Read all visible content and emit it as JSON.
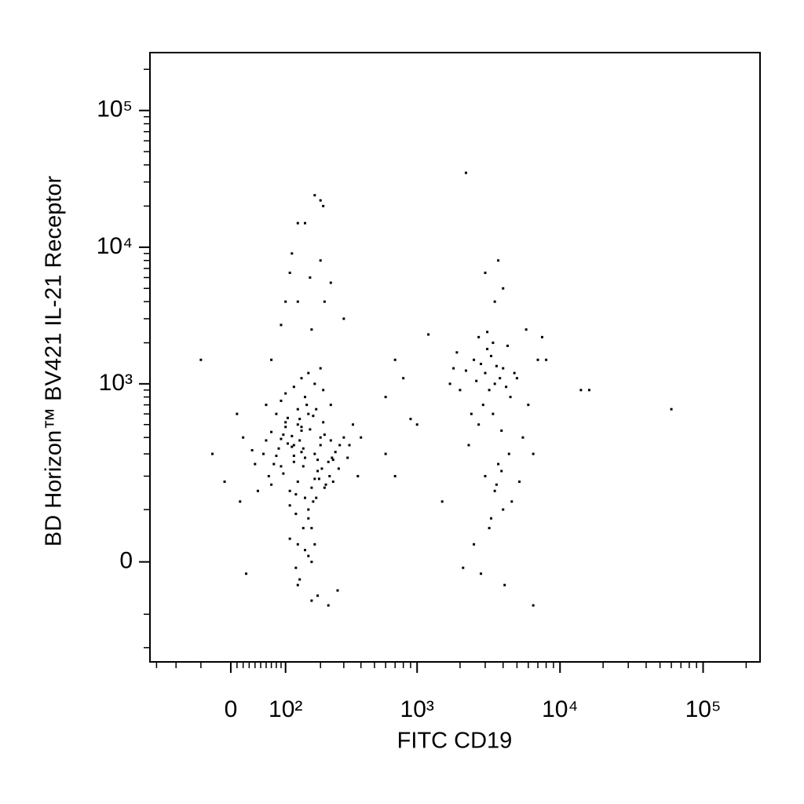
{
  "chart_data": {
    "type": "scatter",
    "xlabel": "FITC CD19",
    "ylabel": "BD Horizon™ BV421 IL-21 Receptor",
    "scale": "biexponential",
    "color": "#000000",
    "xlim": [
      -170,
      250000
    ],
    "ylim": [
      -260,
      265000
    ],
    "xticks": [
      0,
      {
        "value": 100,
        "label": "10²"
      },
      {
        "value": 1000,
        "label": "10³"
      },
      {
        "value": 10000,
        "label": "10⁴"
      },
      {
        "value": 100000,
        "label": "10⁵"
      }
    ],
    "yticks": [
      0,
      {
        "value": 1000,
        "label": "10³"
      },
      {
        "value": 10000,
        "label": "10⁴"
      },
      {
        "value": 100000,
        "label": "10⁵"
      }
    ],
    "xminorticks": [
      -150,
      -100,
      -50,
      10,
      20,
      30,
      40,
      50,
      60,
      70,
      80,
      90,
      200,
      300,
      400,
      500,
      600,
      700,
      800,
      900,
      2000,
      3000,
      4000,
      5000,
      6000,
      7000,
      8000,
      9000,
      20000,
      30000,
      40000,
      50000,
      60000,
      70000,
      80000,
      90000,
      200000
    ],
    "yminorticks": [
      -200,
      -100,
      100,
      200,
      300,
      400,
      500,
      600,
      700,
      800,
      900,
      2000,
      3000,
      4000,
      5000,
      6000,
      7000,
      8000,
      9000,
      20000,
      30000,
      40000,
      50000,
      60000,
      70000,
      80000,
      90000,
      200000
    ],
    "x": [
      120,
      150,
      95,
      180,
      210,
      130,
      75,
      160,
      240,
      110,
      140,
      190,
      85,
      170,
      230,
      125,
      100,
      200,
      155,
      65,
      260,
      135,
      175,
      90,
      220,
      145,
      115,
      185,
      70,
      250,
      160,
      105,
      195,
      130,
      80,
      215,
      150,
      120,
      175,
      95,
      280,
      140,
      60,
      205,
      165,
      110,
      235,
      145,
      125,
      190,
      55,
      300,
      100,
      170,
      135,
      215,
      90,
      150,
      245,
      115,
      180,
      130,
      70,
      200,
      160,
      105,
      275,
      140,
      185,
      120,
      40,
      20,
      -30,
      330,
      380,
      45,
      25,
      350,
      -10,
      10,
      150,
      130,
      170,
      110,
      190,
      145,
      125,
      160,
      135,
      180,
      210,
      90,
      60,
      250,
      320,
      35,
      400,
      15,
      270,
      230,
      140,
      180,
      100,
      120,
      160,
      200,
      80,
      240,
      130,
      170,
      130,
      150,
      180,
      200,
      210,
      115,
      200,
      110,
      165,
      215,
      130,
      100,
      240,
      300,
      90,
      170,
      -50,
      70,
      3000,
      3500,
      2800,
      4000,
      3200,
      2500,
      3800,
      4500,
      2200,
      3300,
      3600,
      2900,
      4200,
      3100,
      2600,
      5000,
      3400,
      2700,
      3900,
      4800,
      1800,
      2000,
      6000,
      7000,
      1700,
      5500,
      2300,
      4400,
      3700,
      2400,
      3000,
      3500,
      4000,
      2800,
      3200,
      4600,
      2100,
      5200,
      3300,
      3900,
      2500,
      4100,
      3600,
      6500,
      1900,
      3400,
      2700,
      4300,
      3100,
      5800,
      2200,
      3700,
      3000,
      4000,
      3500,
      7500,
      8000,
      14000,
      16000,
      60000,
      6500,
      1200,
      700,
      800,
      600,
      900,
      1500,
      700,
      600,
      1000
    ],
    "y": [
      350,
      280,
      420,
      300,
      520,
      180,
      250,
      600,
      380,
      150,
      450,
      220,
      330,
      160,
      260,
      90,
      480,
      400,
      700,
      200,
      310,
      550,
      120,
      390,
      170,
      240,
      340,
      650,
      440,
      270,
      80,
      360,
      190,
      500,
      290,
      420,
      130,
      260,
      580,
      210,
      350,
      310,
      380,
      230,
      460,
      110,
      200,
      330,
      140,
      270,
      300,
      400,
      520,
      60,
      380,
      160,
      240,
      800,
      280,
      410,
      190,
      650,
      170,
      350,
      100,
      560,
      230,
      480,
      130,
      290,
      250,
      400,
      300,
      350,
      200,
      150,
      -20,
      500,
      180,
      600,
      20,
      -40,
      0,
      40,
      -60,
      60,
      -10,
      10,
      -30,
      30,
      900,
      750,
      700,
      180,
      280,
      320,
      400,
      120,
      -50,
      -80,
      1100,
      1000,
      850,
      950,
      1200,
      1300,
      600,
      700,
      30,
      -70,
      15000,
      15000,
      24000,
      22000,
      20000,
      9000,
      8000,
      6500,
      6000,
      4000,
      4000,
      4000,
      5500,
      3000,
      2700,
      2500,
      1500,
      1500,
      1200,
      1000,
      1400,
      1300,
      900,
      1500,
      1100,
      800,
      1250,
      1600,
      1350,
      700,
      950,
      1800,
      1050,
      1100,
      600,
      500,
      450,
      1200,
      1300,
      900,
      700,
      1500,
      1000,
      400,
      350,
      300,
      250,
      600,
      200,
      150,
      100,
      -20,
      60,
      120,
      -10,
      180,
      80,
      220,
      30,
      -40,
      170,
      300,
      1700,
      2000,
      2200,
      1900,
      2400,
      2500,
      35000,
      8000,
      6500,
      5000,
      4000,
      2200,
      1500,
      900,
      900,
      650,
      -80,
      2300,
      1500,
      1100,
      800,
      550,
      120,
      200,
      300,
      500
    ]
  }
}
